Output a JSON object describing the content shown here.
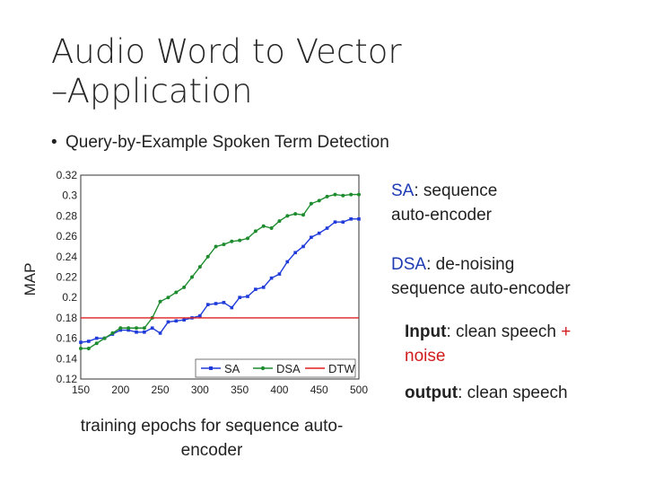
{
  "slide": {
    "title_line1": "Audio Word to Vector",
    "title_line2": "–Application",
    "bullet": "Query-by-Example Spoken Term Detection",
    "notes": {
      "sa_abbr": "SA",
      "sa_rest": ": sequence",
      "sa_line2": "auto-encoder",
      "dsa_abbr": "DSA",
      "dsa_rest": ": de-noising",
      "dsa_line2": "sequence auto-encoder",
      "input_label": "Input",
      "input_rest": ": clean speech",
      "plus": "+",
      "noise": "noise",
      "output_label": "output",
      "output_rest": ": clean speech"
    },
    "x_caption": "training epochs for sequence auto-encoder"
  },
  "colors": {
    "sa": "#1f3bd9",
    "dsa": "#1e8c2e",
    "dtw": "#e02020",
    "text_blue": "#1f3bb3",
    "text_red": "#d11c1c"
  },
  "chart_data": {
    "type": "line",
    "ylabel": "MAP",
    "xlabel": "",
    "xlim": [
      150,
      500
    ],
    "ylim": [
      0.12,
      0.32
    ],
    "xticks": [
      150,
      200,
      250,
      300,
      350,
      400,
      450,
      500
    ],
    "yticks": [
      0.12,
      0.14,
      0.16,
      0.18,
      0.2,
      0.22,
      0.24,
      0.26,
      0.28,
      0.3,
      0.32
    ],
    "ytick_labels": [
      "0.12",
      "0.14",
      "0.16",
      "0.18",
      "0.2",
      "0.22",
      "0.24",
      "0.26",
      "0.28",
      "0.3",
      "0.32"
    ],
    "grid": "dotted",
    "legend": "bottom-right",
    "series": [
      {
        "name": "SA",
        "color": "#1f3bd9",
        "marker": "square",
        "x": [
          150,
          160,
          170,
          180,
          190,
          200,
          210,
          220,
          230,
          240,
          250,
          260,
          270,
          280,
          290,
          300,
          310,
          320,
          330,
          340,
          350,
          360,
          370,
          380,
          390,
          400,
          410,
          420,
          430,
          440,
          450,
          460,
          470,
          480,
          490,
          500
        ],
        "y": [
          0.156,
          0.157,
          0.16,
          0.16,
          0.164,
          0.168,
          0.168,
          0.166,
          0.166,
          0.17,
          0.165,
          0.176,
          0.177,
          0.178,
          0.18,
          0.182,
          0.193,
          0.194,
          0.195,
          0.19,
          0.2,
          0.201,
          0.208,
          0.21,
          0.219,
          0.223,
          0.235,
          0.244,
          0.25,
          0.259,
          0.263,
          0.268,
          0.274,
          0.274,
          0.277,
          0.277
        ]
      },
      {
        "name": "DSA",
        "color": "#1e8c2e",
        "marker": "dot",
        "x": [
          150,
          160,
          170,
          180,
          190,
          200,
          210,
          220,
          230,
          240,
          250,
          260,
          270,
          280,
          290,
          300,
          310,
          320,
          330,
          340,
          350,
          360,
          370,
          380,
          390,
          400,
          410,
          420,
          430,
          440,
          450,
          460,
          470,
          480,
          490,
          500
        ],
        "y": [
          0.15,
          0.15,
          0.155,
          0.16,
          0.165,
          0.17,
          0.17,
          0.17,
          0.17,
          0.18,
          0.196,
          0.2,
          0.205,
          0.21,
          0.22,
          0.23,
          0.24,
          0.25,
          0.252,
          0.255,
          0.256,
          0.258,
          0.265,
          0.27,
          0.268,
          0.275,
          0.28,
          0.282,
          0.281,
          0.292,
          0.295,
          0.299,
          0.301,
          0.3,
          0.301,
          0.301
        ]
      },
      {
        "name": "DTW",
        "color": "#e02020",
        "marker": "none",
        "x": [
          150,
          500
        ],
        "y": [
          0.18,
          0.18
        ]
      }
    ]
  }
}
